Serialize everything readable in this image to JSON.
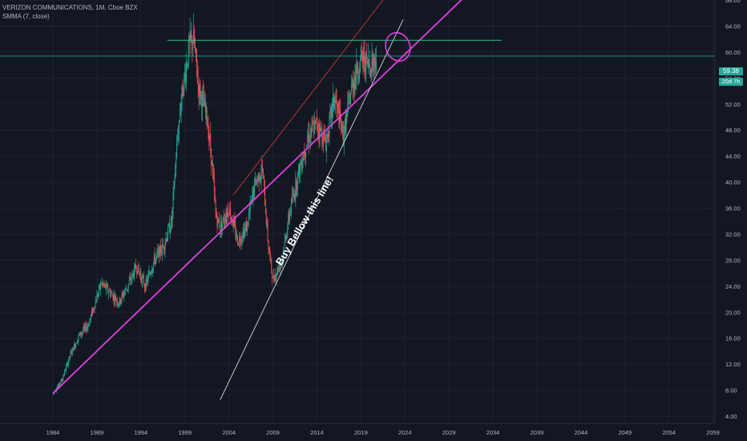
{
  "header": {
    "title": "VERIZON COMMUNICATIONS, 1M, Cboe BZX",
    "indicator": "SMMA (7, close)"
  },
  "price_tags": {
    "last_price": "59.38",
    "countdown": "20d 7h"
  },
  "colors": {
    "background": "#131722",
    "grid": "#1e2230",
    "up": "#26a69a",
    "down": "#ef5350",
    "trend_magenta": "#e040e0",
    "channel_red": "#c03a3a",
    "support_white": "#d8d8d8",
    "horizontal_green": "#2ec27e",
    "price_line": "#26a69a"
  },
  "chart_data": {
    "type": "candlestick",
    "symbol": "VERIZON COMMUNICATIONS",
    "interval": "1M",
    "exchange": "Cboe BZX",
    "indicator": "SMMA (7, close)",
    "last_price": 59.38,
    "y_ticks": [
      4,
      8,
      12,
      16,
      20,
      24,
      28,
      32,
      36,
      40,
      44,
      48,
      52,
      56,
      60,
      64,
      68
    ],
    "y_tick_labels": [
      "4.00",
      "8.00",
      "12.00",
      "16.00",
      "20.00",
      "24.00",
      "28.00",
      "32.00",
      "36.00",
      "40.00",
      "44.00",
      "48.00",
      "52.00",
      "56.00",
      "60.00",
      "64.00",
      "68.00"
    ],
    "x_ticks": [
      1984,
      1989,
      1994,
      1999,
      2004,
      2009,
      2014,
      2019,
      2024,
      2029,
      2034,
      2039,
      2044,
      2049,
      2054,
      2059
    ],
    "x_tick_labels": [
      "1984",
      "1989",
      "1994",
      "1999",
      "2004",
      "2009",
      "2014",
      "2019",
      "2024",
      "2029",
      "2034",
      "2039",
      "2044",
      "2049",
      "2054",
      "2059"
    ],
    "price_path": [
      [
        1984.0,
        7.5
      ],
      [
        1985.0,
        9.5
      ],
      [
        1986.0,
        13.5
      ],
      [
        1987.0,
        16.5
      ],
      [
        1988.0,
        18.0
      ],
      [
        1989.5,
        24.5
      ],
      [
        1990.5,
        23.0
      ],
      [
        1991.5,
        21.5
      ],
      [
        1992.5,
        24.0
      ],
      [
        1993.5,
        27.0
      ],
      [
        1994.5,
        24.0
      ],
      [
        1995.5,
        28.0
      ],
      [
        1996.5,
        30.0
      ],
      [
        1997.5,
        34.0
      ],
      [
        1998.0,
        44.0
      ],
      [
        1998.5,
        52.0
      ],
      [
        1999.5,
        61.0
      ],
      [
        2000.0,
        62.0
      ],
      [
        2000.5,
        55.0
      ],
      [
        2001.5,
        50.0
      ],
      [
        2002.0,
        44.0
      ],
      [
        2002.5,
        35.0
      ],
      [
        2003.0,
        33.0
      ],
      [
        2004.0,
        36.0
      ],
      [
        2005.0,
        31.0
      ],
      [
        2006.0,
        33.0
      ],
      [
        2007.0,
        40.0
      ],
      [
        2007.8,
        42.0
      ],
      [
        2008.5,
        30.0
      ],
      [
        2009.0,
        25.0
      ],
      [
        2010.0,
        28.0
      ],
      [
        2011.0,
        36.0
      ],
      [
        2012.0,
        42.0
      ],
      [
        2013.0,
        47.0
      ],
      [
        2014.0,
        49.0
      ],
      [
        2015.0,
        46.0
      ],
      [
        2016.0,
        53.0
      ],
      [
        2017.0,
        47.0
      ],
      [
        2018.0,
        55.0
      ],
      [
        2019.0,
        59.0
      ],
      [
        2020.0,
        58.0
      ],
      [
        2020.8,
        59.38
      ]
    ],
    "annotations": [
      {
        "type": "trendline",
        "color": "magenta",
        "from": [
          1984.0,
          7.5
        ],
        "to": [
          2035.0,
          74.0
        ]
      },
      {
        "type": "trendline",
        "color": "red",
        "from": [
          2004.5,
          38.0
        ],
        "to": [
          2021.5,
          68.0
        ]
      },
      {
        "type": "trendline",
        "color": "white",
        "from": [
          2003.0,
          6.5
        ],
        "to": [
          2023.8,
          65.0
        ]
      },
      {
        "type": "horizontal",
        "color": "green",
        "from": [
          1997.0,
          61.8
        ],
        "to": [
          2035.0,
          61.8
        ]
      },
      {
        "type": "ellipse",
        "color": "magenta",
        "center": [
          2023.2,
          60.8
        ]
      },
      {
        "type": "text",
        "text": "Buy Bellow this line!"
      }
    ]
  }
}
